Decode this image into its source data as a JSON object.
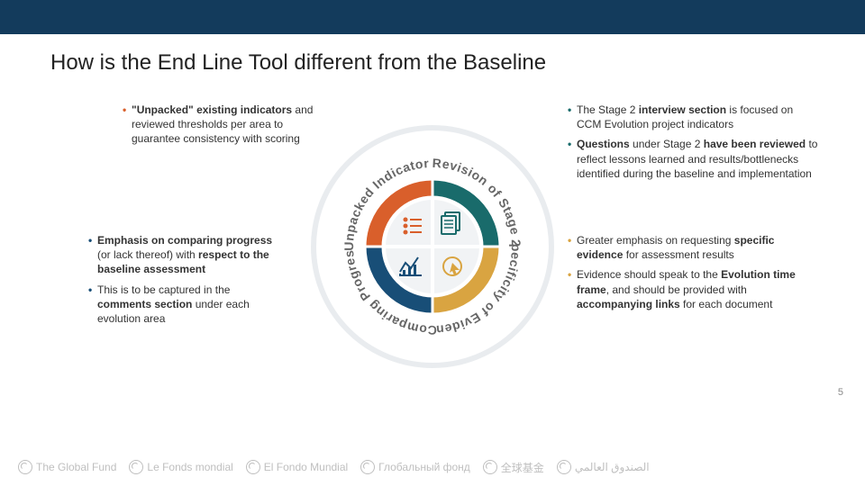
{
  "header": {
    "bar_color": "#133b5c"
  },
  "title": "How is the End Line Tool different from the Baseline",
  "page_number": "5",
  "diagram": {
    "type": "infographic",
    "outer_ring_thin_color": "#e9ecef",
    "quadrants": [
      {
        "key": "tl",
        "label": "Unpacked Indicators",
        "color": "#d95f2b",
        "icon": "list"
      },
      {
        "key": "tr",
        "label": "Revision of Stage 2",
        "color": "#196b6b",
        "icon": "docs"
      },
      {
        "key": "br",
        "label": "Specificity of Evidence",
        "color": "#d9a441",
        "icon": "cursor"
      },
      {
        "key": "bl",
        "label": "Comparing Progress",
        "color": "#184e77",
        "icon": "chart"
      }
    ],
    "center_bg": "#f1f3f5"
  },
  "text": {
    "tl": [
      "<b>\"Unpacked\" existing indicators</b> and reviewed thresholds per area to guarantee consistency with scoring"
    ],
    "tr": [
      "The Stage 2 <b>interview section</b> is focused on CCM Evolution project indicators",
      "<b>Questions</b> under Stage 2 <b>have been reviewed</b> to reflect lessons learned and results/bottlenecks identified during the baseline and implementation"
    ],
    "bl": [
      "<b>Emphasis on comparing progress</b> (or lack thereof) with <b>respect to the baseline assessment</b>",
      "This is to be captured in the <b>comments section</b> under each evolution area"
    ],
    "br": [
      "Greater emphasis on requesting <b>specific evidence</b> for assessment results",
      "Evidence should speak to the <b>Evolution time frame</b>, and should be provided with <b>accompanying links</b> for each document"
    ]
  },
  "footer": {
    "color": "#bfbfbf",
    "items": [
      "The Global Fund",
      "Le Fonds mondial",
      "El Fondo Mundial",
      "Глобальный фонд",
      "全球基金",
      "الصندوق العالمي"
    ]
  }
}
